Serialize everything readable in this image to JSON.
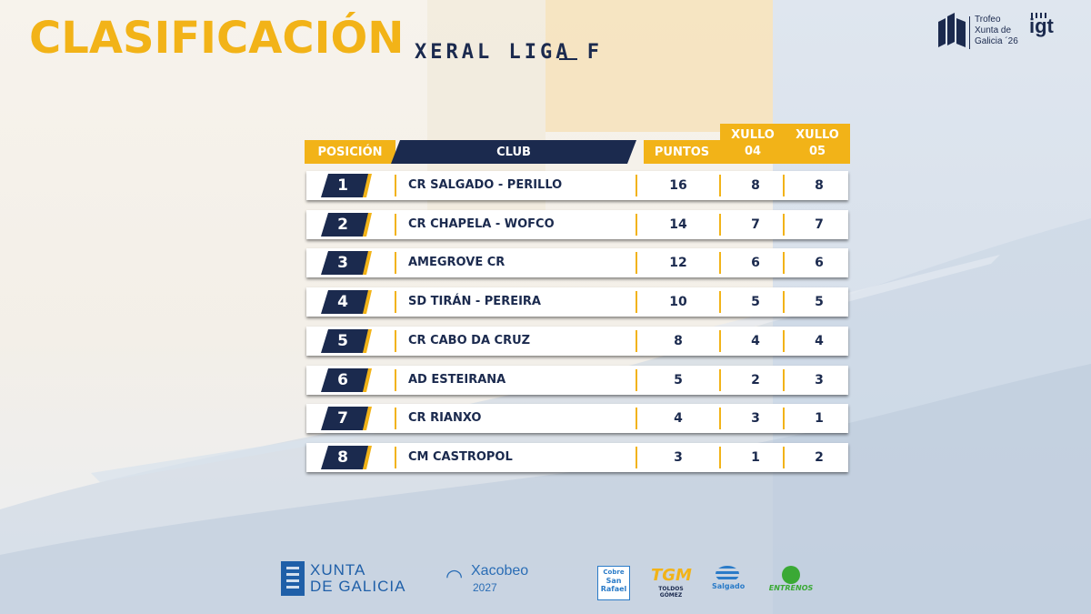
{
  "title": {
    "main": "CLASIFICACIÓN",
    "sub": "XERAL LIGA F"
  },
  "event_logo": {
    "line1": "Trofeo",
    "line2": "Xunta de",
    "line3": "Galicia ´26",
    "mark": "igt"
  },
  "table": {
    "headers": {
      "position": "POSICIÓN",
      "club": "CLUB",
      "points": "PUNTOS",
      "day1_line1": "XULLO",
      "day1_line2": "04",
      "day2_line1": "XULLO",
      "day2_line2": "05"
    },
    "rows": [
      {
        "pos": "1",
        "club": "CR SALGADO - PERILLO",
        "points": "16",
        "d1": "8",
        "d2": "8"
      },
      {
        "pos": "2",
        "club": "CR CHAPELA - WOFCO",
        "points": "14",
        "d1": "7",
        "d2": "7"
      },
      {
        "pos": "3",
        "club": "AMEGROVE CR",
        "points": "12",
        "d1": "6",
        "d2": "6"
      },
      {
        "pos": "4",
        "club": "SD TIRÁN - PEREIRA",
        "points": "10",
        "d1": "5",
        "d2": "5"
      },
      {
        "pos": "5",
        "club": "CR CABO DA CRUZ",
        "points": "8",
        "d1": "4",
        "d2": "4"
      },
      {
        "pos": "6",
        "club": "AD ESTEIRANA",
        "points": "5",
        "d1": "2",
        "d2": "3"
      },
      {
        "pos": "7",
        "club": "CR RIANXO",
        "points": "4",
        "d1": "3",
        "d2": "1"
      },
      {
        "pos": "8",
        "club": "CM CASTROPOL",
        "points": "3",
        "d1": "1",
        "d2": "2"
      }
    ]
  },
  "footer": {
    "xunta_line1": "XUNTA",
    "xunta_line2": "DE GALICIA",
    "xacobeo_line1": "Xacobeo",
    "xacobeo_line2": "2027",
    "sponsors": {
      "san_rafael_top": "Cobre",
      "san_rafael_name": "San Rafael",
      "toldos_mark": "TGM",
      "toldos_name": "TOLDOS GÓMEZ",
      "salgado_name": "Salgado",
      "entrenos_name": "ENTRENOS"
    }
  },
  "colors": {
    "gold": "#f2b318",
    "navy": "#1b2a4e",
    "white": "#ffffff"
  }
}
